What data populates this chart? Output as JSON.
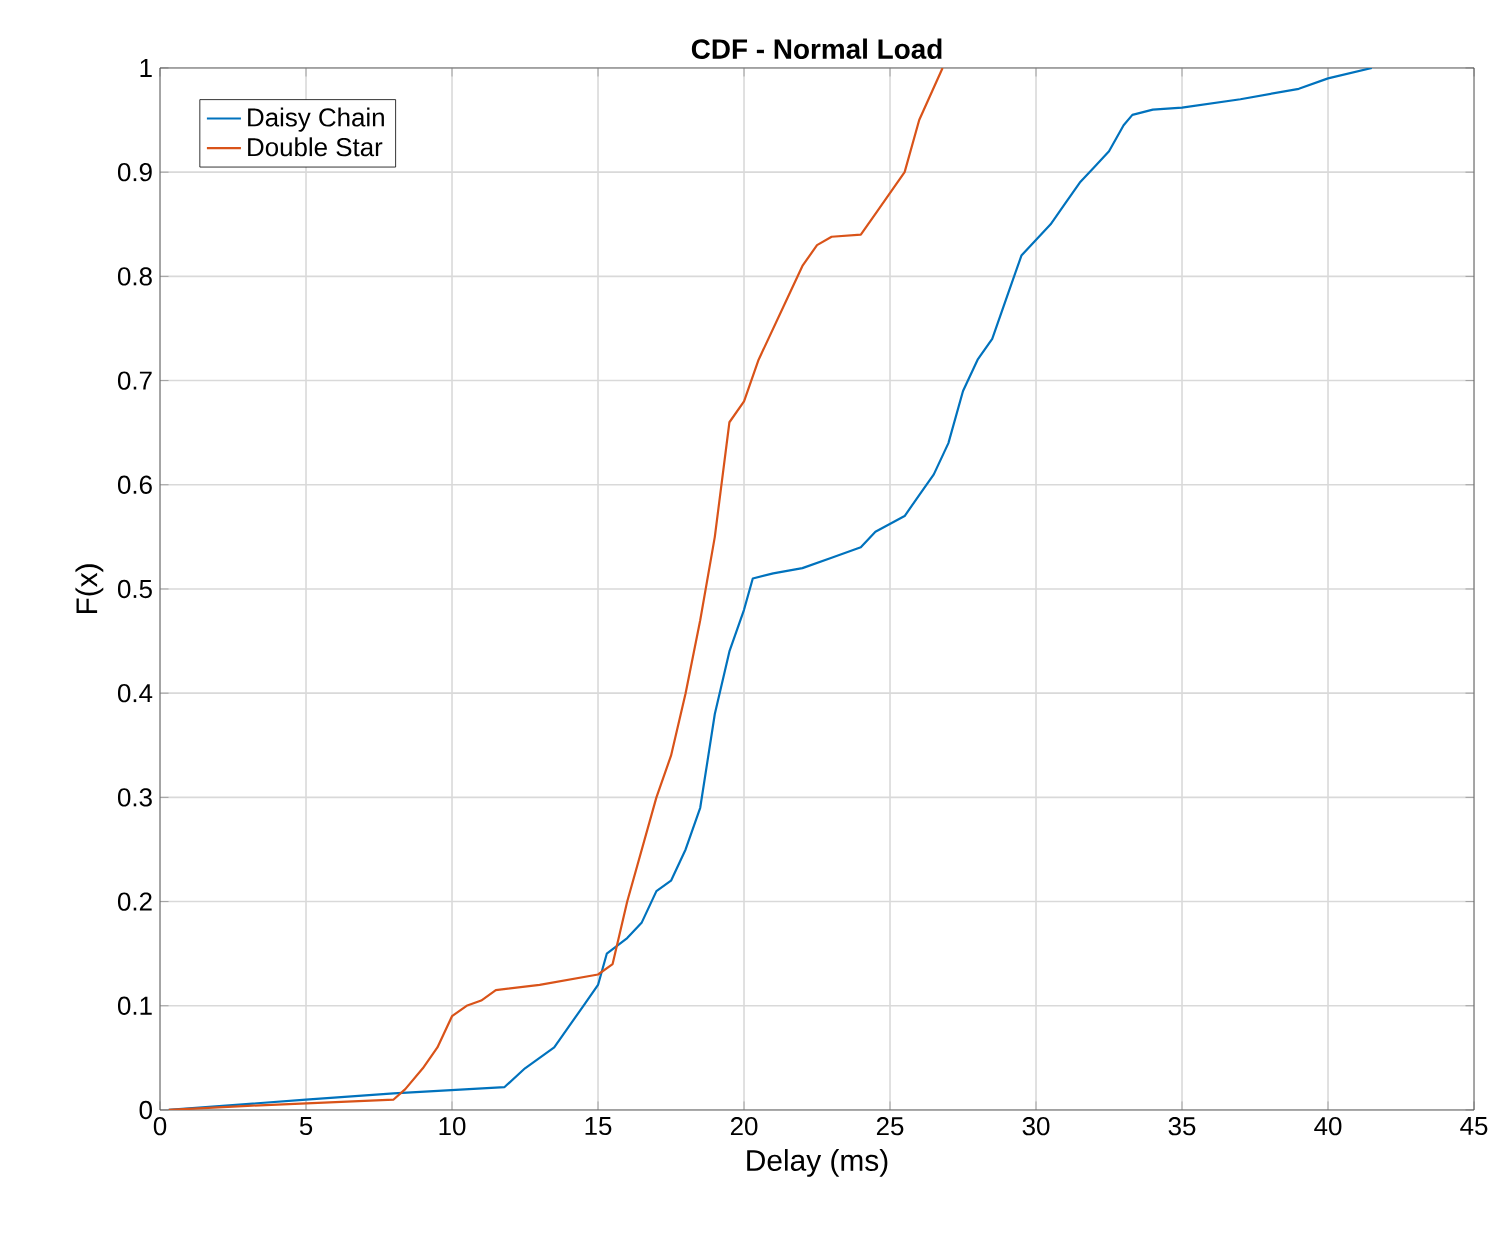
{
  "chart_data": {
    "type": "line",
    "title": "CDF - Normal Load",
    "xlabel": "Delay (ms)",
    "ylabel": "F(x)",
    "xlim": [
      0,
      45
    ],
    "ylim": [
      0,
      1
    ],
    "xticks": [
      0,
      5,
      10,
      15,
      20,
      25,
      30,
      35,
      40,
      45
    ],
    "yticks": [
      0,
      0.1,
      0.2,
      0.3,
      0.4,
      0.5,
      0.6,
      0.7,
      0.8,
      0.9,
      1
    ],
    "grid": true,
    "legend": "top left",
    "line_style": "solid",
    "marker": "none",
    "series": [
      {
        "name": "Daisy Chain",
        "color": "#0072bd",
        "x": [
          0.3,
          5,
          8,
          11.8,
          12.5,
          13.5,
          14.5,
          15,
          15.3,
          16,
          16.5,
          17,
          17.5,
          18,
          18.5,
          19,
          19.5,
          20,
          20.3,
          21,
          22,
          23,
          24,
          24.5,
          25.5,
          26,
          26.5,
          27,
          27.5,
          28,
          28.5,
          29,
          29.5,
          30,
          30.5,
          31,
          31.5,
          32,
          32.5,
          33,
          33.3,
          34,
          35,
          37,
          39,
          40,
          41.5
        ],
        "values": [
          0,
          0.01,
          0.016,
          0.022,
          0.04,
          0.06,
          0.1,
          0.12,
          0.15,
          0.165,
          0.18,
          0.21,
          0.22,
          0.25,
          0.29,
          0.38,
          0.44,
          0.48,
          0.51,
          0.515,
          0.52,
          0.53,
          0.54,
          0.555,
          0.57,
          0.59,
          0.61,
          0.64,
          0.69,
          0.72,
          0.74,
          0.78,
          0.82,
          0.835,
          0.85,
          0.87,
          0.89,
          0.905,
          0.92,
          0.945,
          0.955,
          0.96,
          0.962,
          0.97,
          0.98,
          0.99,
          1
        ]
      },
      {
        "name": "Double Star",
        "color": "#d95319",
        "x": [
          0.3,
          3,
          8,
          8.4,
          9,
          9.5,
          10,
          10.5,
          11,
          11.5,
          13,
          15,
          15.5,
          16,
          16.5,
          17,
          17.5,
          18,
          18.5,
          19,
          19.5,
          20,
          20.5,
          21,
          21.5,
          22,
          22.5,
          23,
          24,
          24.5,
          25,
          25.5,
          26,
          26.8
        ],
        "values": [
          0,
          0.004,
          0.01,
          0.02,
          0.04,
          0.06,
          0.09,
          0.1,
          0.105,
          0.115,
          0.12,
          0.13,
          0.14,
          0.2,
          0.25,
          0.3,
          0.34,
          0.4,
          0.47,
          0.55,
          0.66,
          0.68,
          0.72,
          0.75,
          0.78,
          0.81,
          0.83,
          0.838,
          0.84,
          0.86,
          0.88,
          0.9,
          0.95,
          1
        ]
      }
    ]
  }
}
